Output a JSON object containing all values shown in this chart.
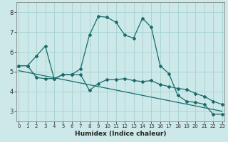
{
  "xlabel": "Humidex (Indice chaleur)",
  "x_ticks": [
    0,
    1,
    2,
    3,
    4,
    5,
    6,
    7,
    8,
    9,
    10,
    11,
    12,
    13,
    14,
    15,
    16,
    17,
    18,
    19,
    20,
    21,
    22,
    23
  ],
  "xlim": [
    -0.3,
    23.3
  ],
  "ylim": [
    2.5,
    8.5
  ],
  "y_ticks": [
    3,
    4,
    5,
    6,
    7,
    8
  ],
  "bg_color": "#cce8e8",
  "line_color": "#1a6b6b",
  "grid_color": "#aad4d4",
  "line1_x": [
    0,
    1,
    2,
    3,
    4,
    5,
    6,
    7,
    8,
    9,
    10,
    11,
    12,
    13,
    14,
    15,
    16,
    17,
    18,
    19,
    20,
    21,
    22,
    23
  ],
  "line1_y": [
    5.3,
    5.3,
    5.8,
    6.3,
    4.65,
    4.85,
    4.85,
    5.15,
    6.85,
    7.8,
    7.75,
    7.5,
    6.85,
    6.7,
    7.7,
    7.25,
    5.3,
    4.9,
    3.8,
    3.5,
    3.45,
    3.35,
    2.85,
    2.85
  ],
  "line2_x": [
    0,
    1,
    2,
    3,
    4,
    5,
    6,
    7,
    8,
    9,
    10,
    11,
    12,
    13,
    14,
    15,
    16,
    17,
    18,
    19,
    20,
    21,
    22,
    23
  ],
  "line2_y": [
    5.3,
    5.3,
    4.7,
    4.65,
    4.65,
    4.85,
    4.85,
    4.85,
    4.05,
    4.4,
    4.6,
    4.6,
    4.65,
    4.55,
    4.5,
    4.55,
    4.35,
    4.25,
    4.15,
    4.1,
    3.9,
    3.75,
    3.5,
    3.35
  ],
  "line3_x": [
    0,
    23
  ],
  "line3_y": [
    5.05,
    3.0
  ]
}
